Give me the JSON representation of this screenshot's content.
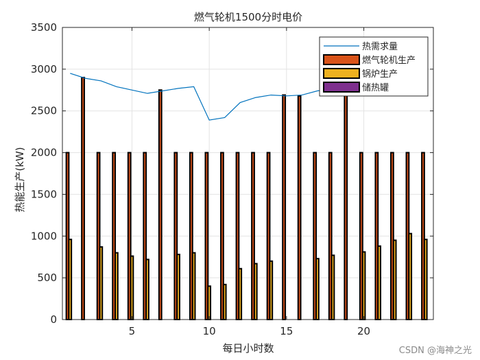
{
  "chart_data": {
    "type": "bar",
    "title": "燃气轮机1500分时电价",
    "xlabel": "每日小时数",
    "ylabel": "热能生产(kW)",
    "xlim": [
      0.5,
      24.5
    ],
    "ylim": [
      0,
      3500
    ],
    "xticks": [
      5,
      10,
      15,
      20
    ],
    "yticks": [
      0,
      500,
      1000,
      1500,
      2000,
      2500,
      3000,
      3500
    ],
    "grid": true,
    "legend_position": "top-right",
    "x": [
      1,
      2,
      3,
      4,
      5,
      6,
      7,
      8,
      9,
      10,
      11,
      12,
      13,
      14,
      15,
      16,
      17,
      18,
      19,
      20,
      21,
      22,
      23,
      24
    ],
    "series": [
      {
        "name": "热需求量",
        "kind": "line",
        "color": "#0072bd",
        "values": [
          2950,
          2890,
          2860,
          2790,
          2750,
          2710,
          2740,
          2770,
          2790,
          2390,
          2420,
          2600,
          2660,
          2690,
          2680,
          2690,
          2740,
          2760,
          2780,
          2800,
          2840,
          2870,
          2890,
          2920
        ]
      },
      {
        "name": "燃气轮机生产",
        "kind": "bar",
        "color": "#d95319",
        "values": [
          2000,
          2900,
          2000,
          2000,
          2000,
          2000,
          2750,
          2000,
          2000,
          2000,
          2000,
          2000,
          2000,
          2000,
          2690,
          2680,
          2000,
          2000,
          2780,
          2000,
          2000,
          2000,
          2000,
          2000
        ]
      },
      {
        "name": "锅炉生产",
        "kind": "bar",
        "color": "#edb120",
        "values": [
          960,
          0,
          870,
          800,
          760,
          720,
          0,
          780,
          800,
          400,
          420,
          610,
          670,
          700,
          0,
          0,
          730,
          770,
          0,
          810,
          880,
          950,
          1030,
          960
        ]
      },
      {
        "name": "储热罐",
        "kind": "bar",
        "color": "#7e2f8e",
        "values": [
          0,
          0,
          0,
          0,
          0,
          0,
          0,
          0,
          0,
          0,
          0,
          0,
          0,
          0,
          0,
          0,
          0,
          0,
          0,
          0,
          0,
          0,
          0,
          0
        ]
      }
    ]
  },
  "watermark": "CSDN @海神之光"
}
